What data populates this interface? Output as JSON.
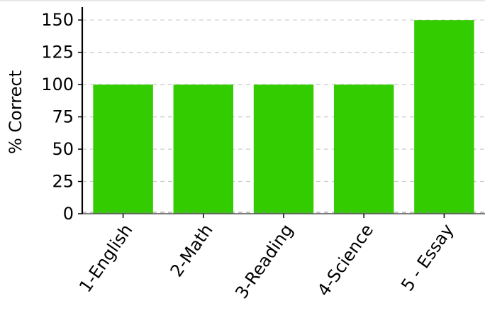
{
  "chart_data": {
    "type": "bar",
    "categories": [
      "1-English",
      "2-Math",
      "3-Reading",
      "4-Science",
      "5 - Essay"
    ],
    "values": [
      100,
      100,
      100,
      100,
      150
    ],
    "ylabel": "% Correct",
    "xlabel": "",
    "ylim": [
      0,
      160
    ],
    "yticks": [
      0,
      25,
      50,
      75,
      100,
      125,
      150
    ],
    "grid": true,
    "legend": "none",
    "colors": {
      "bar": "#33cc00",
      "grid": "#c8c8c8",
      "axis": "#000000",
      "background": "#ffffff"
    }
  }
}
